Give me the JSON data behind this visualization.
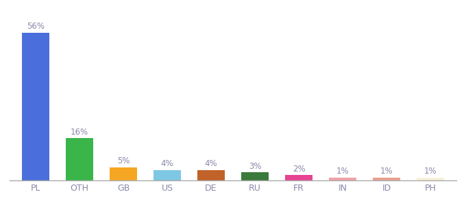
{
  "categories": [
    "PL",
    "OTH",
    "GB",
    "US",
    "DE",
    "RU",
    "FR",
    "IN",
    "ID",
    "PH"
  ],
  "values": [
    56,
    16,
    5,
    4,
    4,
    3,
    2,
    1,
    1,
    1
  ],
  "bar_colors": [
    "#4a6edb",
    "#3ab54a",
    "#f5a623",
    "#7ec8e3",
    "#c0622a",
    "#3a7a3a",
    "#e84393",
    "#f0a0a8",
    "#e8a090",
    "#f5f0d8"
  ],
  "label_fontsize": 8.5,
  "tick_fontsize": 9,
  "label_color": "#8888aa",
  "tick_color": "#8888aa",
  "background_color": "#ffffff",
  "ylim": [
    0,
    63
  ]
}
